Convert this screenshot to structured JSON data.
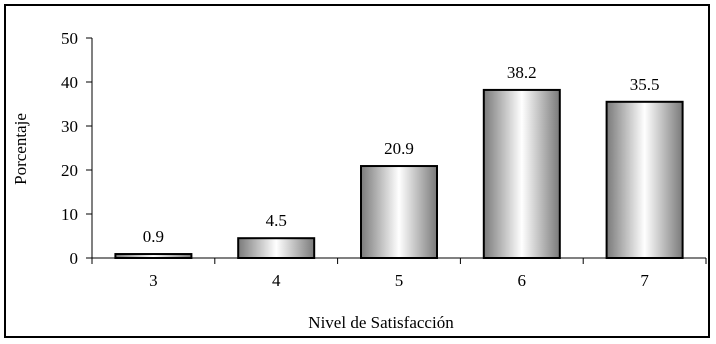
{
  "chart_data": {
    "type": "bar",
    "categories": [
      "3",
      "4",
      "5",
      "6",
      "7"
    ],
    "values": [
      0.9,
      4.5,
      20.9,
      38.2,
      35.5
    ],
    "data_labels": [
      "0.9",
      "4.5",
      "20.9",
      "38.2",
      "35.5"
    ],
    "title": "",
    "xlabel": "Nivel de Satisfacción",
    "ylabel": "Porcentaje",
    "ylim": [
      0,
      50
    ],
    "yticks": [
      0,
      10,
      20,
      30,
      40,
      50
    ],
    "ytick_labels": [
      "0",
      "10",
      "20",
      "30",
      "40",
      "50"
    ],
    "grid": false,
    "legend": "none",
    "bar_style": "silver cylinder gradient with black outline",
    "colors": {
      "bar_dark": "#7a7a7a",
      "bar_light": "#ffffff",
      "outline": "#000000",
      "frame": "#000000"
    }
  }
}
